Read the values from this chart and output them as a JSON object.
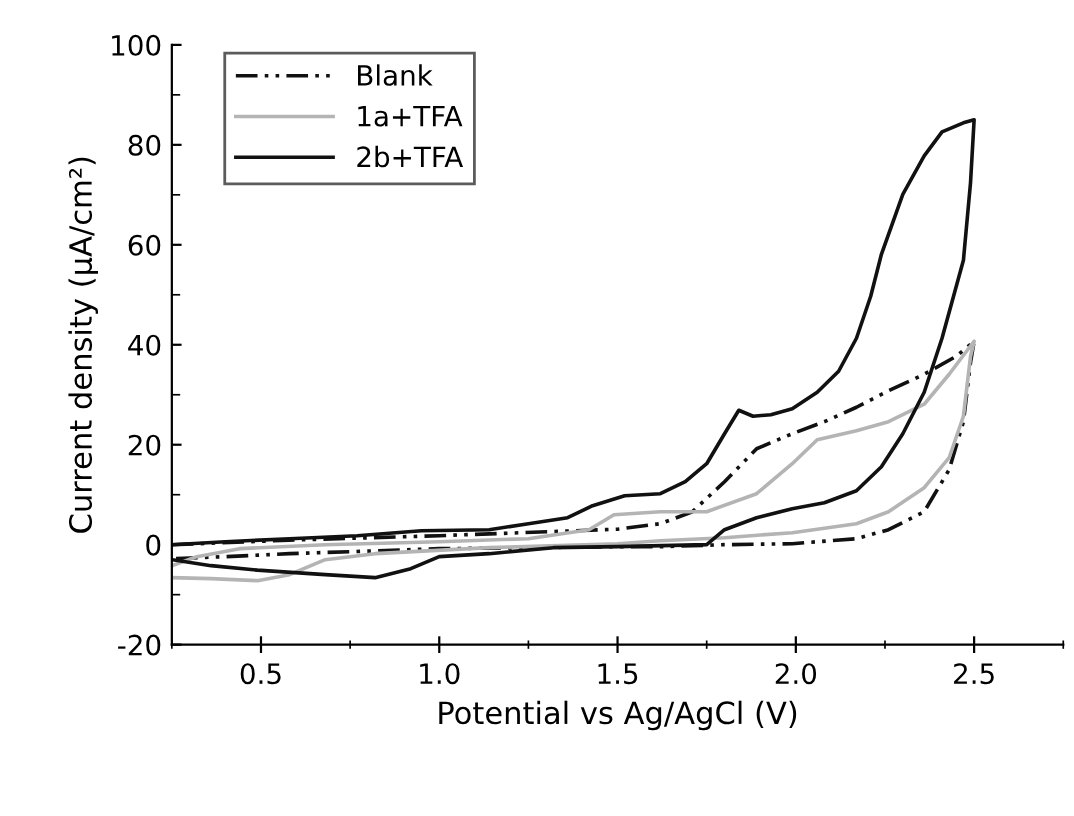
{
  "chart_data": {
    "type": "line",
    "xlabel": "Potential vs Ag/AgCl (V)",
    "ylabel": "Current density (μA/cm²)",
    "xlim": [
      0.25,
      2.75
    ],
    "xticks": [
      0.5,
      {
        "value": 1,
        "label": "1.0"
      },
      1.5,
      {
        "value": 2,
        "label": "2.0"
      },
      2.5
    ],
    "ylim": [
      -20,
      100
    ],
    "yticks": [
      -20,
      0,
      20,
      40,
      60,
      80,
      100
    ],
    "grid": false,
    "legend": "top left",
    "marker": "none",
    "series": [
      {
        "name": "Blank",
        "color": "#111111",
        "line_style": "dashed",
        "x": [
          0.25,
          0.58,
          1.0,
          1.5,
          1.62,
          1.71,
          1.8,
          1.89,
          1.99,
          2.08,
          2.17,
          2.26,
          2.36,
          2.45,
          2.5,
          2.49,
          2.47,
          2.43,
          2.36,
          2.26,
          2.17,
          1.99,
          1.8,
          1.62,
          1.5,
          1.0,
          0.58,
          0.4,
          0.25
        ],
        "values": [
          0,
          0.9,
          1.8,
          3.1,
          4.2,
          6.6,
          12.6,
          19.2,
          22.2,
          24.6,
          27.5,
          30.8,
          34.1,
          37.7,
          40.7,
          36.5,
          24.6,
          15.0,
          6.6,
          3.0,
          1.2,
          0.2,
          0,
          -0.4,
          -0.4,
          -0.8,
          -1.8,
          -2.4,
          -2.8
        ]
      },
      {
        "name": "1a+TFA",
        "color": "#b4b4b4",
        "line_style": "solid",
        "x": [
          0.25,
          0.32,
          0.44,
          0.68,
          1.0,
          1.25,
          1.42,
          1.49,
          1.62,
          1.75,
          1.89,
          1.99,
          2.06,
          2.17,
          2.26,
          2.36,
          2.43,
          2.5,
          2.49,
          2.47,
          2.43,
          2.36,
          2.26,
          2.17,
          1.99,
          1.8,
          1.62,
          1.5,
          1.14,
          0.82,
          0.68,
          0.58,
          0.49,
          0.36,
          0.25
        ],
        "values": [
          -4.2,
          -2.4,
          -0.8,
          0,
          0.6,
          1.2,
          3.0,
          6.0,
          6.6,
          6.6,
          10.2,
          16.2,
          21.0,
          22.8,
          24.6,
          28.1,
          34.1,
          40.7,
          37.7,
          25.7,
          17.4,
          11.4,
          6.6,
          4.2,
          2.4,
          1.4,
          0.8,
          0.2,
          -0.6,
          -1.8,
          -3.0,
          -6.0,
          -7.2,
          -6.8,
          -6.6
        ]
      },
      {
        "name": "2b+TFA",
        "color": "#111111",
        "line_style": "solid",
        "x": [
          0.25,
          0.4,
          0.58,
          0.77,
          0.95,
          1.14,
          1.25,
          1.36,
          1.43,
          1.52,
          1.62,
          1.69,
          1.75,
          1.8,
          1.84,
          1.88,
          1.93,
          1.99,
          2.06,
          2.12,
          2.17,
          2.21,
          2.24,
          2.3,
          2.36,
          2.41,
          2.47,
          2.5,
          2.49,
          2.47,
          2.41,
          2.36,
          2.3,
          2.24,
          2.17,
          2.08,
          1.99,
          1.89,
          1.8,
          1.75,
          1.5,
          1.32,
          1.14,
          1.0,
          0.92,
          0.82,
          0.68,
          0.49,
          0.36,
          0.25
        ],
        "values": [
          0,
          0.6,
          1.2,
          1.8,
          2.8,
          3.0,
          4.2,
          5.4,
          7.8,
          9.8,
          10.2,
          12.6,
          16.2,
          22.2,
          26.9,
          25.7,
          26.0,
          27.2,
          30.5,
          34.7,
          41.3,
          49.7,
          58.1,
          70.1,
          77.8,
          82.6,
          84.4,
          85.0,
          72.5,
          56.9,
          41.3,
          30.5,
          22.2,
          15.6,
          10.8,
          8.4,
          7.2,
          5.4,
          3.0,
          0,
          -0.4,
          -0.6,
          -1.8,
          -2.4,
          -4.8,
          -6.6,
          -6.0,
          -5.1,
          -4.2,
          -3.0
        ]
      }
    ]
  }
}
